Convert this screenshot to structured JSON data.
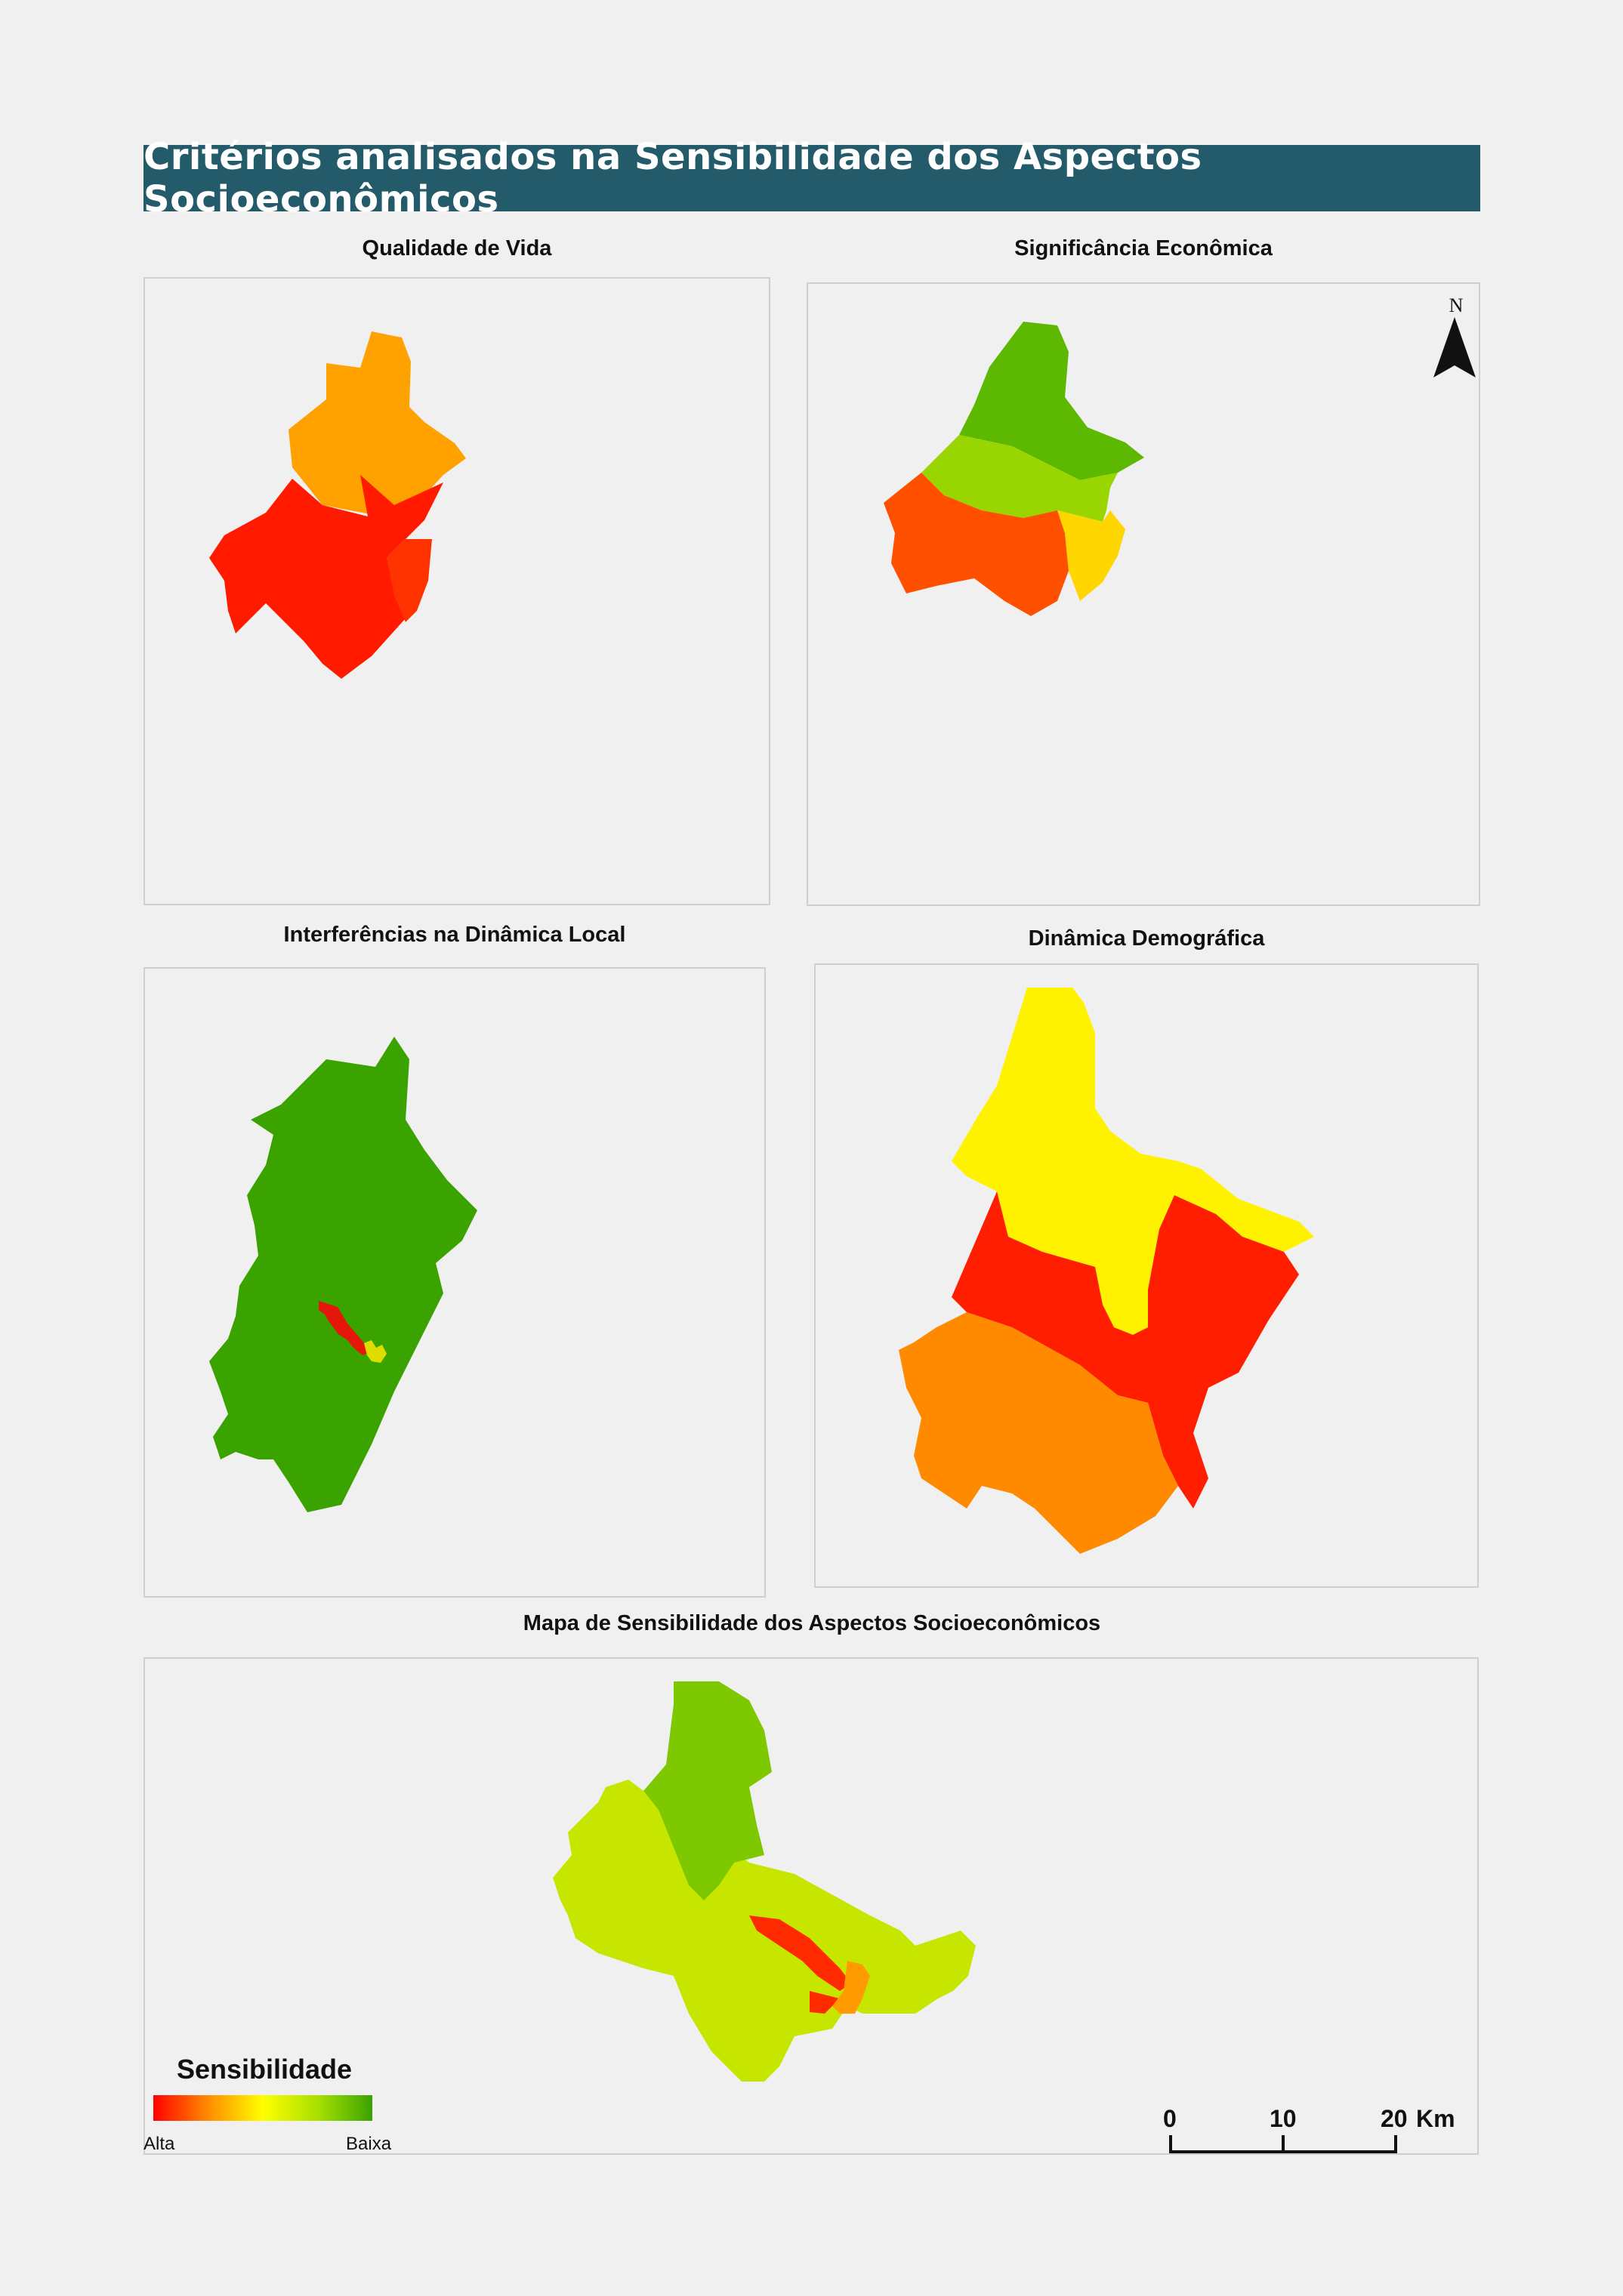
{
  "title": "Critérios analisados na Sensibilidade dos Aspectos Socioeconômicos",
  "panels": {
    "qualidade_vida": {
      "title": "Qualidade de Vida",
      "regions": {
        "north": "#ffa200",
        "southwest": "#ff1a00",
        "southeast": "#ff3300"
      }
    },
    "significancia": {
      "title": "Significância Econômica",
      "regions": {
        "north": "#5cb800",
        "middle": "#99d500",
        "southwest": "#ff5000",
        "east": "#ffd600"
      }
    },
    "interferencias": {
      "title": "Interferências na Dinâmica Local",
      "regions": {
        "main": "#3aa300",
        "corridor_high": "#e5160a",
        "corridor_mid": "#dddd00"
      }
    },
    "dinamica": {
      "title": "Dinâmica Demográfica",
      "regions": {
        "north": "#fff200",
        "central": "#ff1e00",
        "southwest": "#ff8a00"
      }
    },
    "final": {
      "title": "Mapa de Sensibilidade dos Aspectos Socioeconômicos",
      "regions": {
        "north": "#7ec800",
        "main": "#c6e600",
        "southwest": "#ccea1a",
        "corridor_high": "#ff2a00",
        "corridor_mid": "#ff9a00"
      }
    }
  },
  "north_arrow": {
    "label": "N"
  },
  "legend": {
    "title": "Sensibilidade",
    "low_label": "Alta",
    "high_label": "Baixa",
    "gradient": [
      "#ff0000",
      "#ff8c00",
      "#ffff00",
      "#a8e000",
      "#3aa300"
    ]
  },
  "scale_bar": {
    "labels": [
      "0",
      "10",
      "20"
    ],
    "unit": "Km"
  }
}
